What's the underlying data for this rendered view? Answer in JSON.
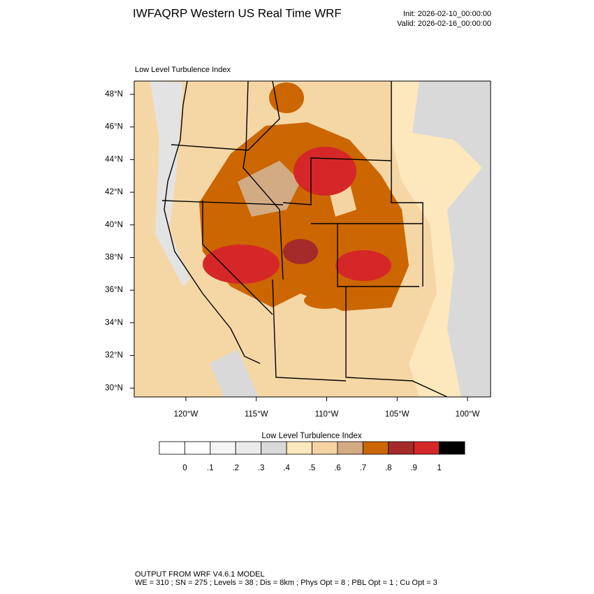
{
  "header": {
    "title": "IWFAQRP Western US Real Time WRF",
    "init": "Init: 2026-02-10_00:00:00",
    "valid": "Valid: 2026-02-16_00:00:00"
  },
  "map": {
    "subtitle": "Low Level Turbulence Index",
    "lat_labels": [
      "48°N",
      "46°N",
      "44°N",
      "42°N",
      "40°N",
      "38°N",
      "36°N",
      "34°N",
      "32°N",
      "30°N"
    ],
    "lon_labels": [
      "120°W",
      "115°W",
      "110°W",
      "105°W",
      "100°W"
    ]
  },
  "colorbar": {
    "title": "Low Level Turbulence Index",
    "colors": [
      "#ffffff",
      "#f5f5f5",
      "#ebebeb",
      "#d9d9d9",
      "#fde7bd",
      "#f5d4a3",
      "#d2ab85",
      "#cc6600",
      "#a52a2a",
      "#d62728",
      "#000000"
    ],
    "labels": [
      "0",
      ".1",
      ".2",
      ".3",
      ".4",
      ".5",
      ".6",
      ".7",
      ".8",
      ".9",
      "1"
    ]
  },
  "footer": {
    "line1": "OUTPUT FROM WRF V4.6.1 MODEL",
    "line2": "WE = 310 ; SN = 275 ; Levels = 38 ; Dis = 8km ; Phys Opt = 8 ; PBL Opt = 1 ; Cu Opt = 3"
  }
}
